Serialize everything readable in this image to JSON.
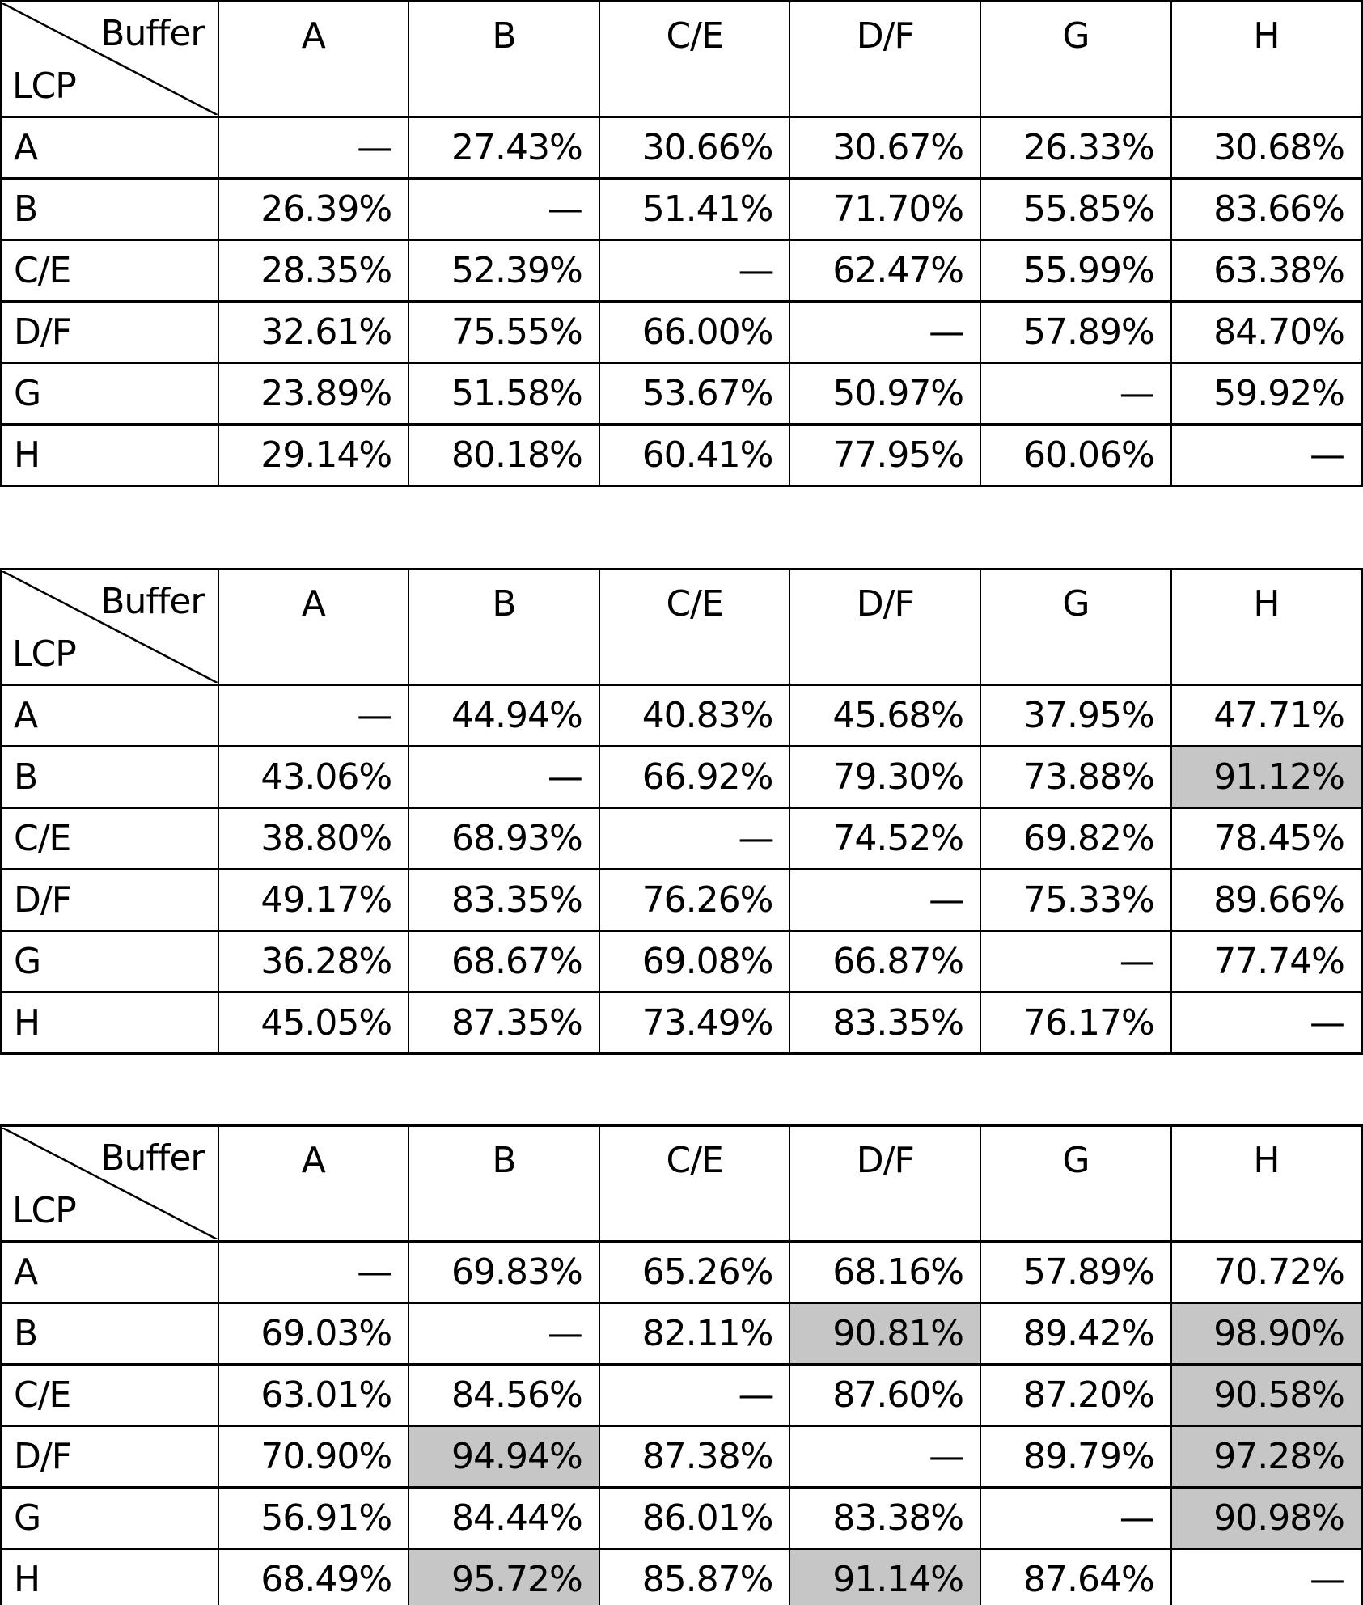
{
  "colors": {
    "background": "#ffffff",
    "text": "#000000",
    "border": "#000000",
    "highlight": "#c6c6c6"
  },
  "tables": [
    {
      "corner": {
        "top": "Buffer",
        "bottom": "LCP"
      },
      "columns": [
        "A",
        "B",
        "C/E",
        "D/F",
        "G",
        "H"
      ],
      "rows": [
        {
          "label": "A",
          "cells": [
            {
              "v": "—"
            },
            {
              "v": "27.43%"
            },
            {
              "v": "30.66%"
            },
            {
              "v": "30.67%"
            },
            {
              "v": "26.33%"
            },
            {
              "v": "30.68%"
            }
          ]
        },
        {
          "label": "B",
          "cells": [
            {
              "v": "26.39%"
            },
            {
              "v": "—"
            },
            {
              "v": "51.41%"
            },
            {
              "v": "71.70%"
            },
            {
              "v": "55.85%"
            },
            {
              "v": "83.66%"
            }
          ]
        },
        {
          "label": "C/E",
          "cells": [
            {
              "v": "28.35%"
            },
            {
              "v": "52.39%"
            },
            {
              "v": "—"
            },
            {
              "v": "62.47%"
            },
            {
              "v": "55.99%"
            },
            {
              "v": "63.38%"
            }
          ]
        },
        {
          "label": "D/F",
          "cells": [
            {
              "v": "32.61%"
            },
            {
              "v": "75.55%"
            },
            {
              "v": "66.00%"
            },
            {
              "v": "—"
            },
            {
              "v": "57.89%"
            },
            {
              "v": "84.70%"
            }
          ]
        },
        {
          "label": "G",
          "cells": [
            {
              "v": "23.89%"
            },
            {
              "v": "51.58%"
            },
            {
              "v": "53.67%"
            },
            {
              "v": "50.97%"
            },
            {
              "v": "—"
            },
            {
              "v": "59.92%"
            }
          ]
        },
        {
          "label": "H",
          "cells": [
            {
              "v": "29.14%"
            },
            {
              "v": "80.18%"
            },
            {
              "v": "60.41%"
            },
            {
              "v": "77.95%"
            },
            {
              "v": "60.06%"
            },
            {
              "v": "—"
            }
          ]
        }
      ]
    },
    {
      "corner": {
        "top": "Buffer",
        "bottom": "LCP"
      },
      "columns": [
        "A",
        "B",
        "C/E",
        "D/F",
        "G",
        "H"
      ],
      "rows": [
        {
          "label": "A",
          "cells": [
            {
              "v": "—"
            },
            {
              "v": "44.94%"
            },
            {
              "v": "40.83%"
            },
            {
              "v": "45.68%"
            },
            {
              "v": "37.95%"
            },
            {
              "v": "47.71%"
            }
          ]
        },
        {
          "label": "B",
          "cells": [
            {
              "v": "43.06%"
            },
            {
              "v": "—"
            },
            {
              "v": "66.92%"
            },
            {
              "v": "79.30%"
            },
            {
              "v": "73.88%"
            },
            {
              "v": "91.12%",
              "h": true
            }
          ]
        },
        {
          "label": "C/E",
          "cells": [
            {
              "v": "38.80%"
            },
            {
              "v": "68.93%"
            },
            {
              "v": "—"
            },
            {
              "v": "74.52%"
            },
            {
              "v": "69.82%"
            },
            {
              "v": "78.45%"
            }
          ]
        },
        {
          "label": "D/F",
          "cells": [
            {
              "v": "49.17%"
            },
            {
              "v": "83.35%"
            },
            {
              "v": "76.26%"
            },
            {
              "v": "—"
            },
            {
              "v": "75.33%"
            },
            {
              "v": "89.66%"
            }
          ]
        },
        {
          "label": "G",
          "cells": [
            {
              "v": "36.28%"
            },
            {
              "v": "68.67%"
            },
            {
              "v": "69.08%"
            },
            {
              "v": "66.87%"
            },
            {
              "v": "—"
            },
            {
              "v": "77.74%"
            }
          ]
        },
        {
          "label": "H",
          "cells": [
            {
              "v": "45.05%"
            },
            {
              "v": "87.35%"
            },
            {
              "v": "73.49%"
            },
            {
              "v": "83.35%"
            },
            {
              "v": "76.17%"
            },
            {
              "v": "—"
            }
          ]
        }
      ]
    },
    {
      "corner": {
        "top": "Buffer",
        "bottom": "LCP"
      },
      "columns": [
        "A",
        "B",
        "C/E",
        "D/F",
        "G",
        "H"
      ],
      "rows": [
        {
          "label": "A",
          "cells": [
            {
              "v": "—"
            },
            {
              "v": "69.83%"
            },
            {
              "v": "65.26%"
            },
            {
              "v": "68.16%"
            },
            {
              "v": "57.89%"
            },
            {
              "v": "70.72%"
            }
          ]
        },
        {
          "label": "B",
          "cells": [
            {
              "v": "69.03%"
            },
            {
              "v": "—"
            },
            {
              "v": "82.11%"
            },
            {
              "v": "90.81%",
              "h": true
            },
            {
              "v": "89.42%"
            },
            {
              "v": "98.90%",
              "h": true
            }
          ]
        },
        {
          "label": "C/E",
          "cells": [
            {
              "v": "63.01%"
            },
            {
              "v": "84.56%"
            },
            {
              "v": "—"
            },
            {
              "v": "87.60%"
            },
            {
              "v": "87.20%"
            },
            {
              "v": "90.58%",
              "h": true
            }
          ]
        },
        {
          "label": "D/F",
          "cells": [
            {
              "v": "70.90%"
            },
            {
              "v": "94.94%",
              "h": true
            },
            {
              "v": "87.38%"
            },
            {
              "v": "—"
            },
            {
              "v": "89.79%"
            },
            {
              "v": "97.28%",
              "h": true
            }
          ]
        },
        {
          "label": "G",
          "cells": [
            {
              "v": "56.91%"
            },
            {
              "v": "84.44%"
            },
            {
              "v": "86.01%"
            },
            {
              "v": "83.38%"
            },
            {
              "v": "—"
            },
            {
              "v": "90.98%",
              "h": true
            }
          ]
        },
        {
          "label": "H",
          "cells": [
            {
              "v": "68.49%"
            },
            {
              "v": "95.72%",
              "h": true
            },
            {
              "v": "85.87%"
            },
            {
              "v": "91.14%",
              "h": true
            },
            {
              "v": "87.64%"
            },
            {
              "v": "—"
            }
          ]
        }
      ]
    }
  ]
}
